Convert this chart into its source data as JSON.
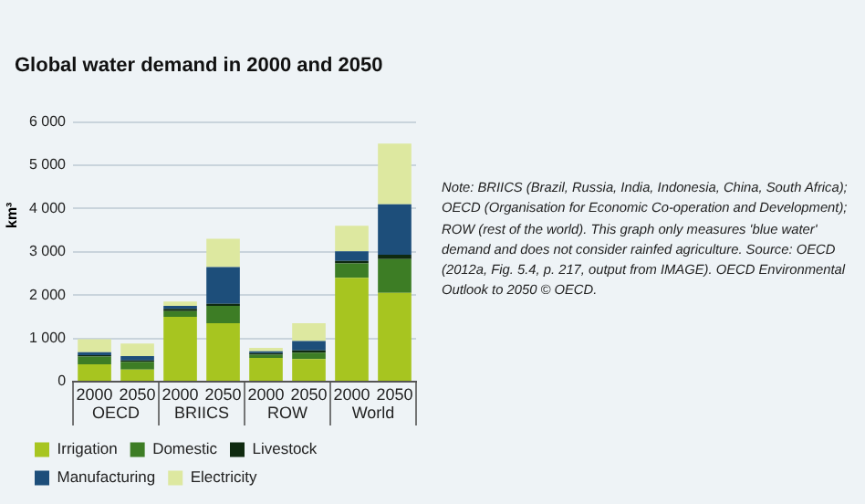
{
  "chart_data": {
    "type": "bar",
    "title": "Global water demand in 2000 and 2050",
    "ylabel": "km³",
    "categories": [
      "2000",
      "2050",
      "2000",
      "2050",
      "2000",
      "2050",
      "2000",
      "2050"
    ],
    "stacked": true,
    "legend": "bottom",
    "grid": "y",
    "ylim": [
      0,
      6000
    ],
    "yticks": [
      0,
      {
        "value": 1000,
        "label": "1 000"
      },
      {
        "value": 2000,
        "label": "2 000"
      },
      {
        "value": 3000,
        "label": "3 000"
      },
      {
        "value": 4000,
        "label": "4 000"
      },
      {
        "value": 5000,
        "label": "5 000"
      },
      {
        "value": 6000,
        "label": "6 000"
      }
    ],
    "series": [
      {
        "name": "Irrigation",
        "color": "#a7c520",
        "values": [
          400,
          280,
          1500,
          1350,
          550,
          520,
          2400,
          2050
        ]
      },
      {
        "name": "Domestic",
        "color": "#3d7d25",
        "values": [
          180,
          180,
          130,
          400,
          70,
          150,
          330,
          780
        ]
      },
      {
        "name": "Livestock",
        "color": "#0f2a10",
        "values": [
          30,
          30,
          50,
          50,
          40,
          50,
          60,
          100
        ]
      },
      {
        "name": "Manufacturing",
        "color": "#1d4e7a",
        "values": [
          70,
          100,
          70,
          850,
          40,
          220,
          220,
          1170
        ]
      },
      {
        "name": "Electricity",
        "color": "#dde8a0",
        "values": [
          300,
          290,
          100,
          650,
          80,
          410,
          590,
          1400
        ]
      }
    ],
    "annotations": [
      "OECD",
      "BRIICS",
      "ROW",
      "World",
      "Note: BRIICS (Brazil, Russia, India, Indonesia, China, South Africa); OECD (Organisation for Economic Co-operation and Development); ROW (rest of the world). This graph only measures 'blue water' demand and does not consider rainfed agriculture. Source: OECD (2012a, Fig. 5.4, p. 217, output from IMAGE). OECD Environmental Outlook to 2050 © OECD."
    ]
  }
}
